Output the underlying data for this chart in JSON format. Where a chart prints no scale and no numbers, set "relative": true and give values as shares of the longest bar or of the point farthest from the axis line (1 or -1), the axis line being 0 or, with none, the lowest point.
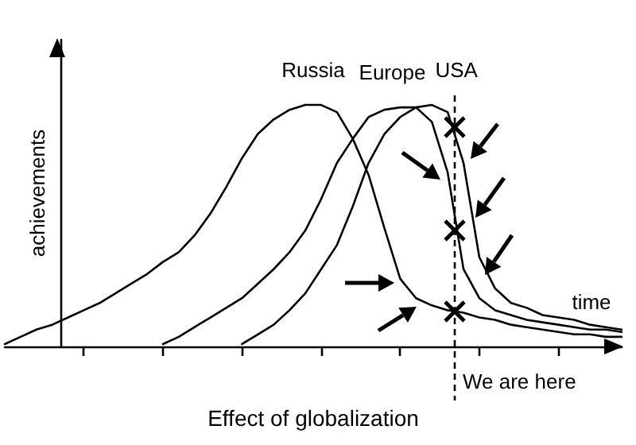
{
  "chart_data": {
    "type": "line",
    "relative": true,
    "xlabel": "Effect of globalization",
    "ylabel": "achievements",
    "categories": [
      null,
      null,
      null,
      null,
      null,
      null,
      null,
      null,
      null,
      null,
      null,
      null,
      null,
      null,
      null,
      null,
      null,
      null,
      null,
      null,
      null,
      null,
      null,
      null,
      null,
      null,
      null,
      null,
      null,
      null,
      null,
      null,
      null,
      null,
      null,
      null,
      null,
      null,
      null,
      null
    ],
    "grid": false,
    "legend": false,
    "marker": "none",
    "line_style": "solid",
    "series": [
      {
        "name": "Russia",
        "color": "#000000",
        "values": [
          0.01,
          0.04,
          0.07,
          0.09,
          0.12,
          0.15,
          0.18,
          0.22,
          0.26,
          0.3,
          0.35,
          0.39,
          0.46,
          0.55,
          0.66,
          0.78,
          0.88,
          0.94,
          0.98,
          1.0,
          1.0,
          0.97,
          0.86,
          0.71,
          0.49,
          0.28,
          0.2,
          0.17,
          0.15,
          0.14,
          0.12,
          0.11,
          0.09,
          0.08,
          0.07,
          0.06,
          0.05,
          0.05,
          0.04,
          0.04
        ]
      },
      {
        "name": "Europe",
        "color": "#000000",
        "values": [
          null,
          null,
          null,
          null,
          null,
          null,
          null,
          null,
          null,
          null,
          0.01,
          0.04,
          0.08,
          0.12,
          0.16,
          0.2,
          0.26,
          0.32,
          0.39,
          0.48,
          0.61,
          0.76,
          0.86,
          0.95,
          0.98,
          0.99,
          0.99,
          0.93,
          0.72,
          0.32,
          0.2,
          0.15,
          0.13,
          0.11,
          0.1,
          0.09,
          0.08,
          0.07,
          0.07,
          0.06
        ]
      },
      {
        "name": "USA",
        "color": "#000000",
        "values": [
          null,
          null,
          null,
          null,
          null,
          null,
          null,
          null,
          null,
          null,
          null,
          null,
          null,
          null,
          null,
          0.01,
          0.05,
          0.09,
          0.15,
          0.22,
          0.32,
          0.42,
          0.58,
          0.76,
          0.88,
          0.95,
          0.99,
          1.0,
          0.97,
          0.76,
          0.37,
          0.24,
          0.18,
          0.16,
          0.13,
          0.12,
          0.11,
          0.09,
          0.08,
          0.07
        ]
      }
    ],
    "annotations": [
      "We are here",
      "time"
    ]
  }
}
